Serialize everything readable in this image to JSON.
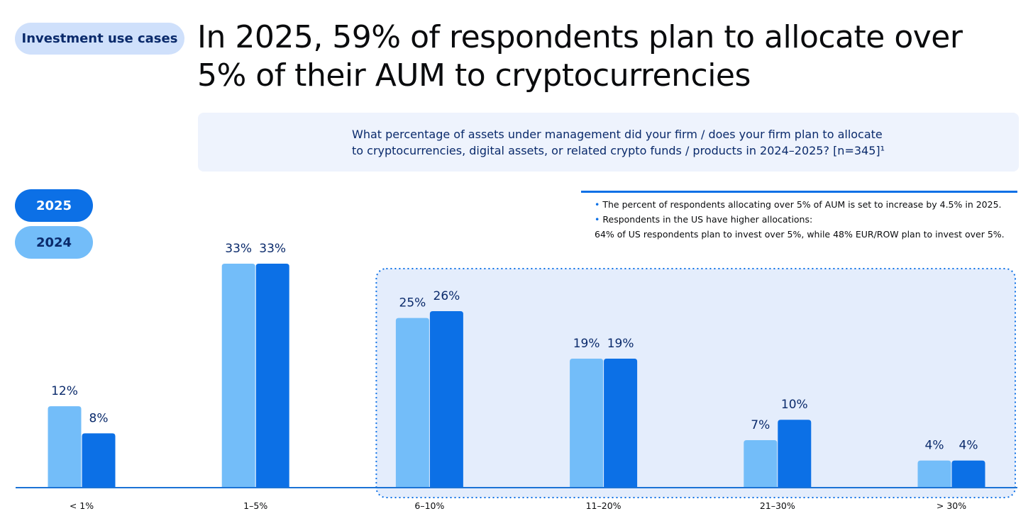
{
  "tag": "Investment use cases",
  "title": "In 2025, 59% of respondents plan to allocate over 5% of their AUM to cryptocurrencies",
  "question": "What percentage of assets under management did your firm / does your firm plan to allocate to cryptocurrencies, digital assets, or related crypto funds / products in 2024–2025? [n=345]¹",
  "legend": {
    "y2025": "2025",
    "y2024": "2024"
  },
  "notes": {
    "line1": "The percent of respondents allocating over 5% of AUM is set to increase by 4.5% in 2025.",
    "line2": "Respondents in the US have higher allocations:",
    "line3": "64% of US respondents plan to invest over 5%, while 48% EUR/ROW plan to invest over 5%."
  },
  "colors": {
    "series_2024": "#73bdf9",
    "series_2025": "#0c70e6",
    "highlight_fill": "#e4edfc",
    "highlight_border": "#0c70e6",
    "label": "#0a2a6b"
  },
  "chart_data": {
    "type": "bar",
    "categories": [
      "< 1%",
      "1–5%",
      "6–10%",
      "11–20%",
      "21–30%",
      "> 30%"
    ],
    "series": [
      {
        "name": "2024",
        "values": [
          12,
          33,
          25,
          19,
          7,
          4
        ],
        "labels": [
          "12%",
          "33%",
          "25%",
          "19%",
          "7%",
          "4%"
        ]
      },
      {
        "name": "2025",
        "values": [
          8,
          33,
          26,
          19,
          10,
          4
        ],
        "labels": [
          "8%",
          "33%",
          "26%",
          "19%",
          "10%",
          "4%"
        ]
      }
    ],
    "highlighted_categories": [
      "6–10%",
      "11–20%",
      "21–30%",
      "> 30%"
    ],
    "ylim": [
      0,
      33
    ],
    "grid": false,
    "legend_position": "left"
  }
}
